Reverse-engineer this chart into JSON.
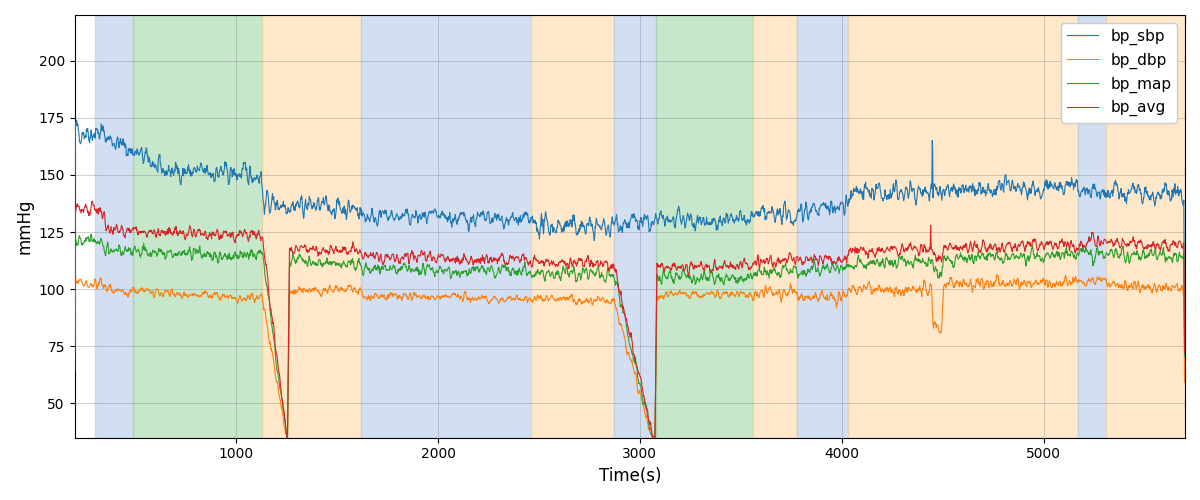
{
  "xlabel": "Time(s)",
  "ylabel": "mmHg",
  "xlim": [
    200,
    5700
  ],
  "ylim": [
    35,
    220
  ],
  "yticks": [
    50,
    75,
    100,
    125,
    150,
    175,
    200
  ],
  "xticks": [
    1000,
    2000,
    3000,
    4000,
    5000
  ],
  "line_colors": {
    "bp_sbp": "#1f77b4",
    "bp_dbp": "#ff7f0e",
    "bp_map": "#2ca02c",
    "bp_avg": "#d62728"
  },
  "bg_bands": [
    {
      "xmin": 300,
      "xmax": 490,
      "color": "#AEC6E8",
      "alpha": 0.55
    },
    {
      "xmin": 490,
      "xmax": 1130,
      "color": "#98D49E",
      "alpha": 0.55
    },
    {
      "xmin": 1130,
      "xmax": 1620,
      "color": "#FFD4A0",
      "alpha": 0.55
    },
    {
      "xmin": 1620,
      "xmax": 2460,
      "color": "#AEC6E8",
      "alpha": 0.55
    },
    {
      "xmin": 2460,
      "xmax": 2870,
      "color": "#FFD4A0",
      "alpha": 0.55
    },
    {
      "xmin": 2870,
      "xmax": 3080,
      "color": "#AEC6E8",
      "alpha": 0.55
    },
    {
      "xmin": 3080,
      "xmax": 3560,
      "color": "#98D49E",
      "alpha": 0.55
    },
    {
      "xmin": 3560,
      "xmax": 3780,
      "color": "#FFD4A0",
      "alpha": 0.55
    },
    {
      "xmin": 3780,
      "xmax": 4030,
      "color": "#AEC6E8",
      "alpha": 0.55
    },
    {
      "xmin": 4030,
      "xmax": 5170,
      "color": "#FFD4A0",
      "alpha": 0.55
    },
    {
      "xmin": 5170,
      "xmax": 5310,
      "color": "#AEC6E8",
      "alpha": 0.55
    },
    {
      "xmin": 5310,
      "xmax": 5700,
      "color": "#FFD4A0",
      "alpha": 0.55
    }
  ],
  "random_seed": 42,
  "figsize": [
    12,
    5
  ],
  "dpi": 100,
  "segments": {
    "sbp": [
      [
        200,
        350,
        170,
        168,
        6
      ],
      [
        350,
        600,
        167,
        155,
        5
      ],
      [
        600,
        1130,
        152,
        150,
        5
      ],
      [
        1130,
        1620,
        138,
        135,
        5
      ],
      [
        1620,
        2460,
        132,
        130,
        4
      ],
      [
        2460,
        2870,
        128,
        127,
        5
      ],
      [
        2870,
        3080,
        130,
        128,
        5
      ],
      [
        3080,
        3560,
        130,
        130,
        4
      ],
      [
        3560,
        3780,
        133,
        132,
        5
      ],
      [
        3780,
        4030,
        135,
        136,
        5
      ],
      [
        4030,
        5170,
        142,
        145,
        5
      ],
      [
        5170,
        5310,
        143,
        142,
        4
      ],
      [
        5310,
        5700,
        143,
        140,
        5
      ]
    ],
    "dbp": [
      [
        200,
        350,
        104,
        102,
        3
      ],
      [
        350,
        1130,
        100,
        96,
        2
      ],
      [
        1130,
        1260,
        96,
        30,
        3
      ],
      [
        1260,
        1620,
        99,
        100,
        2
      ],
      [
        1620,
        2460,
        97,
        96,
        2
      ],
      [
        2460,
        2870,
        96,
        95,
        2
      ],
      [
        2870,
        3080,
        95,
        30,
        3
      ],
      [
        3080,
        3560,
        98,
        98,
        2
      ],
      [
        3560,
        3780,
        98,
        99,
        3
      ],
      [
        3780,
        4030,
        96,
        97,
        3
      ],
      [
        4030,
        4450,
        100,
        100,
        3
      ],
      [
        4450,
        4500,
        84,
        83,
        3
      ],
      [
        4500,
        5170,
        102,
        103,
        3
      ],
      [
        5170,
        5310,
        103,
        104,
        2
      ],
      [
        5310,
        5700,
        103,
        100,
        3
      ]
    ],
    "map": [
      [
        200,
        350,
        122,
        120,
        3
      ],
      [
        350,
        1130,
        117,
        115,
        3
      ],
      [
        1130,
        1260,
        115,
        30,
        3
      ],
      [
        1260,
        1620,
        112,
        111,
        3
      ],
      [
        1620,
        2460,
        109,
        108,
        3
      ],
      [
        2460,
        2870,
        107,
        107,
        3
      ],
      [
        2870,
        3080,
        107,
        30,
        3
      ],
      [
        3080,
        3560,
        105,
        105,
        3
      ],
      [
        3560,
        3780,
        107,
        108,
        3
      ],
      [
        3780,
        4030,
        108,
        109,
        3
      ],
      [
        4030,
        4450,
        111,
        113,
        3
      ],
      [
        4450,
        4500,
        108,
        107,
        3
      ],
      [
        4500,
        5170,
        113,
        115,
        3
      ],
      [
        5170,
        5310,
        115,
        116,
        3
      ],
      [
        5310,
        5700,
        116,
        114,
        3
      ]
    ],
    "avg": [
      [
        200,
        350,
        136,
        133,
        3
      ],
      [
        350,
        1130,
        126,
        123,
        3
      ],
      [
        1130,
        1260,
        122,
        30,
        3
      ],
      [
        1260,
        1620,
        118,
        117,
        3
      ],
      [
        1620,
        2460,
        114,
        113,
        3
      ],
      [
        2460,
        2870,
        112,
        111,
        3
      ],
      [
        2870,
        3080,
        111,
        30,
        3
      ],
      [
        3080,
        3560,
        110,
        110,
        3
      ],
      [
        3560,
        3780,
        112,
        113,
        3
      ],
      [
        3780,
        4030,
        113,
        114,
        3
      ],
      [
        4030,
        4450,
        116,
        118,
        3
      ],
      [
        4450,
        4500,
        114,
        113,
        3
      ],
      [
        4500,
        5170,
        118,
        120,
        3
      ],
      [
        5170,
        5310,
        120,
        121,
        3
      ],
      [
        5310,
        5700,
        121,
        119,
        3
      ]
    ]
  }
}
